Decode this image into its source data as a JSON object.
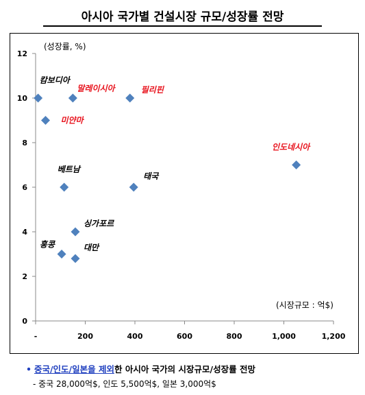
{
  "title": "아시아 국가별 건설시장 규모/성장률 전망",
  "y_unit_label": "(성장률, %)",
  "x_unit_label": "(시장규모 : 억$)",
  "footnote": {
    "bullet": "•",
    "highlight": "중국/인도/일본을 제외",
    "rest": "한 아시아 국가의 시장규모/성장률 전망",
    "line2": "- 중국 28,000억$, 인도 5,500억$, 일본 3,000억$"
  },
  "colors": {
    "marker": "#4f81bd",
    "label_red": "#e8141e",
    "label_black": "#000000"
  },
  "chart_data": {
    "type": "scatter",
    "title": "아시아 국가별 건설시장 규모/성장률 전망",
    "xlabel": "(시장규모 : 억$)",
    "ylabel": "(성장률, %)",
    "xlim": [
      0,
      1200
    ],
    "ylim": [
      0,
      12
    ],
    "x_ticks": [
      0,
      200,
      400,
      600,
      800,
      1000,
      1200
    ],
    "x_tick_labels": [
      "-",
      "200",
      "400",
      "600",
      "800",
      "1,000",
      "1,200"
    ],
    "y_ticks": [
      0,
      2,
      4,
      6,
      8,
      10,
      12
    ],
    "y_tick_labels": [
      "0",
      "2",
      "4",
      "6",
      "8",
      "10",
      "12"
    ],
    "grid": false,
    "points": [
      {
        "label": "캄보디아",
        "x": 10,
        "y": 10,
        "highlight": false
      },
      {
        "label": "말레이시아",
        "x": 150,
        "y": 10,
        "highlight": true
      },
      {
        "label": "필리핀",
        "x": 380,
        "y": 10,
        "highlight": true
      },
      {
        "label": "미얀마",
        "x": 40,
        "y": 9,
        "highlight": true
      },
      {
        "label": "인도네시아",
        "x": 1050,
        "y": 7,
        "highlight": true
      },
      {
        "label": "베트남",
        "x": 115,
        "y": 6,
        "highlight": false
      },
      {
        "label": "태국",
        "x": 395,
        "y": 6,
        "highlight": false
      },
      {
        "label": "싱가포르",
        "x": 160,
        "y": 4,
        "highlight": false
      },
      {
        "label": "홍콩",
        "x": 105,
        "y": 3,
        "highlight": false
      },
      {
        "label": "대만",
        "x": 160,
        "y": 2.8,
        "highlight": false
      }
    ]
  }
}
